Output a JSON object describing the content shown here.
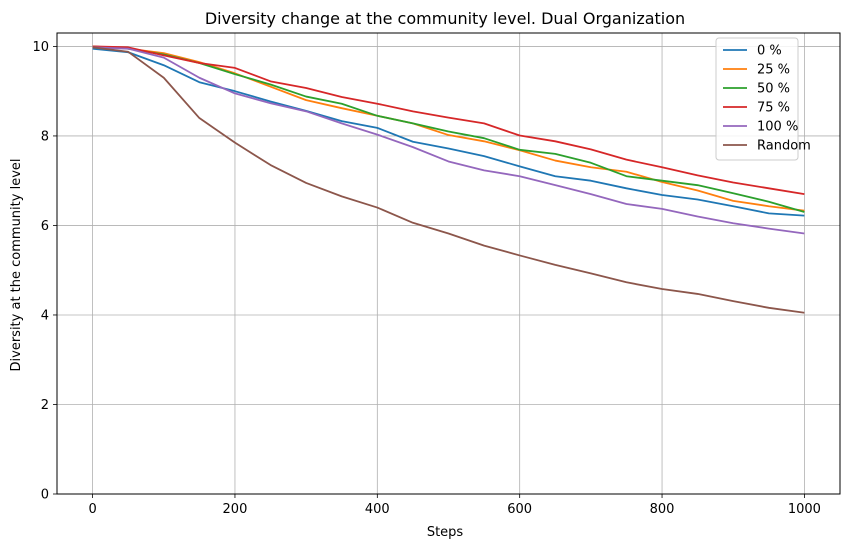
{
  "chart_data": {
    "type": "line",
    "title": "Diversity change at the community level. Dual Organization",
    "xlabel": "Steps",
    "ylabel": "Diversity at the community level",
    "xlim": [
      -50,
      1050
    ],
    "ylim": [
      0,
      10.3
    ],
    "xticks": [
      0,
      200,
      400,
      600,
      800,
      1000
    ],
    "yticks": [
      0,
      2,
      4,
      6,
      8,
      10
    ],
    "grid": true,
    "legend_position": "top-right",
    "x": [
      0,
      50,
      100,
      150,
      200,
      250,
      300,
      350,
      400,
      450,
      500,
      550,
      600,
      650,
      700,
      750,
      800,
      850,
      900,
      950,
      1000
    ],
    "series": [
      {
        "name": "0 %",
        "color": "#1f77b4",
        "values": [
          9.95,
          9.87,
          9.58,
          9.2,
          9.0,
          8.77,
          8.56,
          8.33,
          8.18,
          7.87,
          7.72,
          7.55,
          7.32,
          7.1,
          7.0,
          6.83,
          6.68,
          6.58,
          6.43,
          6.27,
          6.22
        ]
      },
      {
        "name": "25 %",
        "color": "#ff7f0e",
        "values": [
          10.0,
          9.95,
          9.85,
          9.65,
          9.4,
          9.1,
          8.8,
          8.62,
          8.45,
          8.28,
          8.02,
          7.88,
          7.68,
          7.45,
          7.3,
          7.2,
          6.97,
          6.78,
          6.55,
          6.43,
          6.33
        ]
      },
      {
        "name": "50 %",
        "color": "#2ca02c",
        "values": [
          10.0,
          9.95,
          9.82,
          9.63,
          9.38,
          9.15,
          8.88,
          8.72,
          8.45,
          8.28,
          8.1,
          7.95,
          7.69,
          7.6,
          7.4,
          7.1,
          7.0,
          6.9,
          6.72,
          6.53,
          6.3
        ]
      },
      {
        "name": "75 %",
        "color": "#d62728",
        "values": [
          10.0,
          9.98,
          9.8,
          9.63,
          9.52,
          9.22,
          9.07,
          8.87,
          8.72,
          8.55,
          8.41,
          8.28,
          8.01,
          7.88,
          7.7,
          7.47,
          7.3,
          7.12,
          6.96,
          6.83,
          6.7
        ]
      },
      {
        "name": "100 %",
        "color": "#9467bd",
        "values": [
          9.98,
          9.95,
          9.75,
          9.3,
          8.95,
          8.73,
          8.55,
          8.28,
          8.03,
          7.75,
          7.43,
          7.23,
          7.1,
          6.9,
          6.7,
          6.48,
          6.37,
          6.2,
          6.05,
          5.93,
          5.82
        ]
      },
      {
        "name": "Random",
        "color": "#8c564b",
        "values": [
          9.98,
          9.88,
          9.3,
          8.4,
          7.85,
          7.35,
          6.95,
          6.65,
          6.4,
          6.06,
          5.82,
          5.55,
          5.33,
          5.12,
          4.93,
          4.73,
          4.58,
          4.47,
          4.31,
          4.16,
          4.05
        ]
      }
    ]
  }
}
